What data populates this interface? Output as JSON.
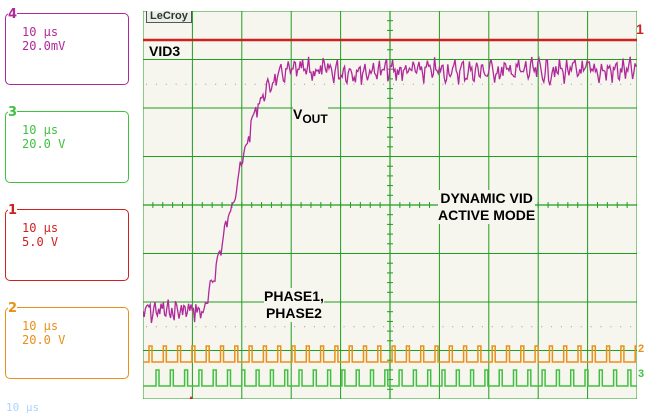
{
  "channels": [
    {
      "number": "4",
      "time_div": "10 μs",
      "volt_div": "20.0mV",
      "color": "#b0289a"
    },
    {
      "number": "3",
      "time_div": "10 μs",
      "volt_div": "20.0 V",
      "color": "#40c040"
    },
    {
      "number": "1",
      "time_div": "10 μs",
      "volt_div": "5.0 V",
      "color": "#d02020"
    },
    {
      "number": "2",
      "time_div": "10 μs",
      "volt_div": "20.0 V",
      "color": "#e89018"
    }
  ],
  "status_text": "10 μs",
  "logo": "LeCroy",
  "labels": {
    "vid3": "VID3",
    "vout_main": "V",
    "vout_sub": "OUT",
    "mode_line1": "DYNAMIC VID",
    "mode_line2": "ACTIVE MODE",
    "phase_line1": "PHASE1,",
    "phase_line2": "PHASE2"
  },
  "markers": {
    "right_top": "1",
    "right_mid": "2",
    "right_low": "3"
  },
  "colors": {
    "grid": "#1f9e1f",
    "background": "#f6f6ee",
    "vout": "#b0289a",
    "vid3": "#d02020",
    "phase1": "#e89018",
    "phase2": "#40c040"
  }
}
